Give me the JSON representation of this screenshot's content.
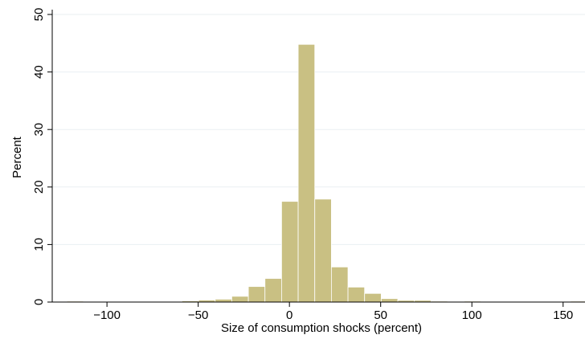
{
  "chart_data": {
    "type": "bar",
    "title": "",
    "xlabel": "Size of consumption shocks (percent)",
    "ylabel": "Percent",
    "xlim": [
      -130,
      162
    ],
    "ylim": [
      0,
      50
    ],
    "bin_width": 9.1,
    "xticks": [
      -100,
      -50,
      0,
      50,
      100,
      150
    ],
    "yticks": [
      0,
      10,
      20,
      30,
      40,
      50
    ],
    "grid": true,
    "legend": "none",
    "bar_color": "#c9c083",
    "bar_edge_color": "#ffffff",
    "bins": [
      {
        "x0": -122.0,
        "value": 0.15
      },
      {
        "x0": -104.0,
        "value": 0.1
      },
      {
        "x0": -95.0,
        "value": 0.1
      },
      {
        "x0": -86.0,
        "value": 0.1
      },
      {
        "x0": -77.0,
        "value": 0.1
      },
      {
        "x0": -68.0,
        "value": 0.1
      },
      {
        "x0": -58.9,
        "value": 0.2
      },
      {
        "x0": -49.8,
        "value": 0.35
      },
      {
        "x0": -40.7,
        "value": 0.5
      },
      {
        "x0": -31.6,
        "value": 1.0
      },
      {
        "x0": -22.5,
        "value": 2.7
      },
      {
        "x0": -13.4,
        "value": 4.1
      },
      {
        "x0": -4.3,
        "value": 17.5
      },
      {
        "x0": 4.8,
        "value": 44.8
      },
      {
        "x0": 13.9,
        "value": 17.9
      },
      {
        "x0": 23.0,
        "value": 6.1
      },
      {
        "x0": 32.1,
        "value": 2.6
      },
      {
        "x0": 41.2,
        "value": 1.5
      },
      {
        "x0": 50.3,
        "value": 0.6
      },
      {
        "x0": 59.4,
        "value": 0.3
      },
      {
        "x0": 68.5,
        "value": 0.3
      },
      {
        "x0": 77.6,
        "value": 0.15
      },
      {
        "x0": 95.8,
        "value": 0.15
      },
      {
        "x0": 104.9,
        "value": 0.1
      },
      {
        "x0": 114.0,
        "value": 0.1
      },
      {
        "x0": 145.0,
        "value": 0.1
      },
      {
        "x0": 154.1,
        "value": 0.15
      }
    ]
  }
}
